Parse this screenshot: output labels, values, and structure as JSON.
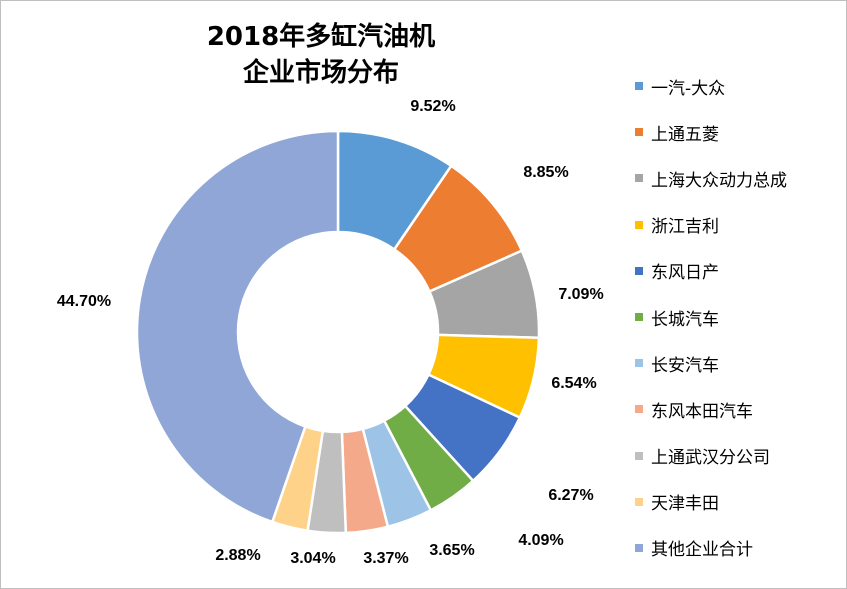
{
  "chart_data": {
    "type": "pie",
    "variant": "donut",
    "title_lines": [
      "2018年多缸汽油机",
      "企业市场分布"
    ],
    "legend_position": "right",
    "categories": [
      "一汽-大众",
      "上通五菱",
      "上海大众动力总成",
      "浙江吉利",
      "东风日产",
      "长城汽车",
      "长安汽车",
      "东风本田汽车",
      "上通武汉分公司",
      "天津丰田",
      "其他企业合计"
    ],
    "values": [
      9.52,
      8.85,
      7.09,
      6.54,
      6.27,
      4.09,
      3.65,
      3.37,
      3.04,
      2.88,
      44.7
    ],
    "data_labels": [
      "9.52%",
      "8.85%",
      "7.09%",
      "6.54%",
      "6.27%",
      "4.09%",
      "3.65%",
      "3.37%",
      "3.04%",
      "2.88%",
      "44.70%"
    ],
    "colors": [
      "#5B9BD5",
      "#ED7D31",
      "#A5A5A5",
      "#FFC000",
      "#4472C4",
      "#70AD47",
      "#9DC3E6",
      "#F4A98A",
      "#BFBFBF",
      "#FFD28A",
      "#8FA6D6"
    ]
  }
}
